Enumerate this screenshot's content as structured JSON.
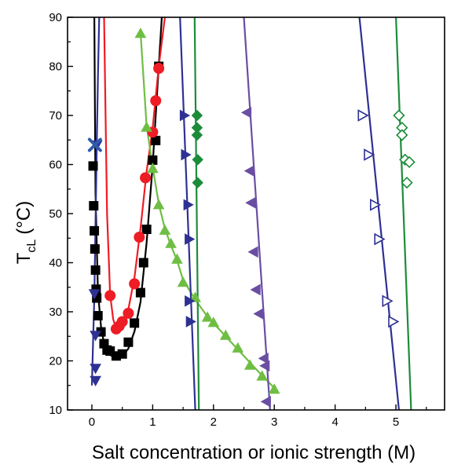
{
  "chart_data": {
    "type": "scatter",
    "xlabel": "Salt concentration or ionic strength (M)",
    "ylabel_main": "T",
    "ylabel_sub": "cL",
    "ylabel_unit": "(°C)",
    "xlim": [
      -0.4,
      5.8
    ],
    "ylim": [
      10,
      90
    ],
    "x_ticks": [
      0,
      1,
      2,
      3,
      4,
      5
    ],
    "y_ticks": [
      10,
      20,
      30,
      40,
      50,
      60,
      70,
      80,
      90
    ],
    "grid": false,
    "series": [
      {
        "marker": "square",
        "color": "#000000",
        "filled": true,
        "x": [
          0.02,
          0.03,
          0.04,
          0.05,
          0.06,
          0.07,
          0.08,
          0.1,
          0.15,
          0.2,
          0.25,
          0.3,
          0.4,
          0.5,
          0.6,
          0.7,
          0.8,
          0.85,
          0.9,
          1.0,
          1.05,
          1.1
        ],
        "y": [
          59.7,
          51.6,
          46.5,
          42.8,
          38.5,
          34.6,
          32.8,
          29.2,
          25.9,
          23.5,
          22.2,
          22.0,
          21.0,
          21.4,
          23.8,
          27.7,
          33.9,
          40.0,
          46.8,
          60.9,
          64.9,
          80.0
        ],
        "curve": {
          "x": [
            0.04,
            0.06,
            0.1,
            0.15,
            0.2,
            0.25,
            0.3,
            0.4,
            0.5,
            0.6,
            0.7,
            0.8,
            0.9,
            1.0,
            1.1,
            1.15
          ],
          "y": [
            90,
            54,
            34,
            27,
            23.5,
            22,
            21.2,
            20.5,
            21,
            22.5,
            26,
            32,
            44,
            60,
            80,
            90
          ]
        }
      },
      {
        "marker": "circle",
        "color": "#ee1c25",
        "filled": true,
        "x": [
          0.3,
          0.4,
          0.45,
          0.5,
          0.6,
          0.7,
          0.78,
          0.88,
          1.0,
          1.05,
          1.1
        ],
        "y": [
          33.3,
          26.5,
          27.1,
          28.0,
          29.7,
          35.7,
          45.2,
          57.3,
          66.6,
          73.0,
          79.6
        ],
        "curve": {
          "x": [
            0.2,
            0.25,
            0.3,
            0.35,
            0.4,
            0.5,
            0.6,
            0.7,
            0.8,
            0.9,
            1.0,
            1.1,
            1.2
          ],
          "y": [
            90,
            50,
            33.5,
            28.5,
            26.5,
            27,
            30.5,
            37,
            47,
            58.5,
            67.5,
            80,
            90
          ]
        }
      },
      {
        "marker": "triangle-down",
        "color": "#2e3192",
        "filled": true,
        "x": [
          0.04,
          0.06,
          0.06,
          0.06,
          0.08
        ],
        "y": [
          33.7,
          25.2,
          18.5,
          16.0,
          64.0
        ],
        "curve": {
          "x": [
            0.0,
            0.02,
            0.04,
            0.06,
            0.08,
            0.1,
            0.12
          ],
          "y": [
            15,
            24,
            33,
            48,
            64,
            78,
            90
          ]
        }
      },
      {
        "marker": "x",
        "color": "#2e5caa",
        "filled": true,
        "x": [
          0.05
        ],
        "y": [
          64.0
        ]
      },
      {
        "marker": "triangle-up",
        "color": "#6fbe44",
        "filled": true,
        "x": [
          0.8,
          0.9,
          1.0,
          1.1,
          1.2,
          1.3,
          1.4,
          1.5,
          1.7,
          1.9,
          2.0,
          2.2,
          2.4,
          2.6,
          2.8,
          3.0
        ],
        "y": [
          86.7,
          67.6,
          59.2,
          51.8,
          46.6,
          43.9,
          40.7,
          36.0,
          32.9,
          28.9,
          27.8,
          25.2,
          22.6,
          19.1,
          16.9,
          14.2
        ],
        "curve": {
          "x": [
            0.8,
            0.9,
            1.0,
            1.1,
            1.2,
            1.3,
            1.4,
            1.5,
            1.7,
            1.9,
            2.2,
            2.5,
            2.8,
            3.0
          ],
          "y": [
            87,
            68,
            59.5,
            52,
            47,
            43.5,
            40.5,
            36.5,
            32.5,
            29,
            25,
            21,
            17,
            14.5
          ]
        }
      },
      {
        "marker": "triangle-right",
        "color": "#2e3192",
        "filled": true,
        "x": [
          1.52,
          1.54,
          1.58,
          1.6,
          1.6,
          1.62
        ],
        "y": [
          70.0,
          62.0,
          51.8,
          44.8,
          32.2,
          28.0
        ],
        "curve": {
          "x": [
            1.45,
            1.7
          ],
          "y": [
            90,
            10
          ]
        }
      },
      {
        "marker": "diamond",
        "color": "#1d8c3a",
        "filled": true,
        "x": [
          1.73,
          1.73,
          1.73,
          1.74,
          1.74
        ],
        "y": [
          70.0,
          67.5,
          66.0,
          61.0,
          56.3
        ],
        "curve": {
          "x": [
            1.69,
            1.76
          ],
          "y": [
            90,
            10
          ]
        }
      },
      {
        "marker": "triangle-left",
        "color": "#6a4ea2",
        "filled": true,
        "x": [
          2.55,
          2.6,
          2.62,
          2.66,
          2.7,
          2.75,
          2.83,
          2.85,
          2.87
        ],
        "y": [
          70.6,
          58.7,
          52.2,
          42.2,
          34.5,
          29.6,
          20.5,
          19.0,
          11.7
        ],
        "curve": {
          "x": [
            2.5,
            2.93
          ],
          "y": [
            90,
            10
          ]
        }
      },
      {
        "marker": "triangle-right",
        "color": "#2e3192",
        "filled": false,
        "x": [
          4.45,
          4.55,
          4.65,
          4.72,
          4.85,
          4.95
        ],
        "y": [
          70.0,
          62.0,
          51.8,
          44.8,
          32.2,
          28.0
        ],
        "curve": {
          "x": [
            4.4,
            5.05
          ],
          "y": [
            90,
            10
          ]
        }
      },
      {
        "marker": "diamond",
        "color": "#1d8c3a",
        "filled": false,
        "x": [
          5.05,
          5.1,
          5.1,
          5.15,
          5.22,
          5.18
        ],
        "y": [
          70.0,
          67.5,
          66.0,
          61.0,
          60.5,
          56.3
        ],
        "curve": {
          "x": [
            5.0,
            5.25
          ],
          "y": [
            90,
            10
          ]
        }
      }
    ]
  }
}
